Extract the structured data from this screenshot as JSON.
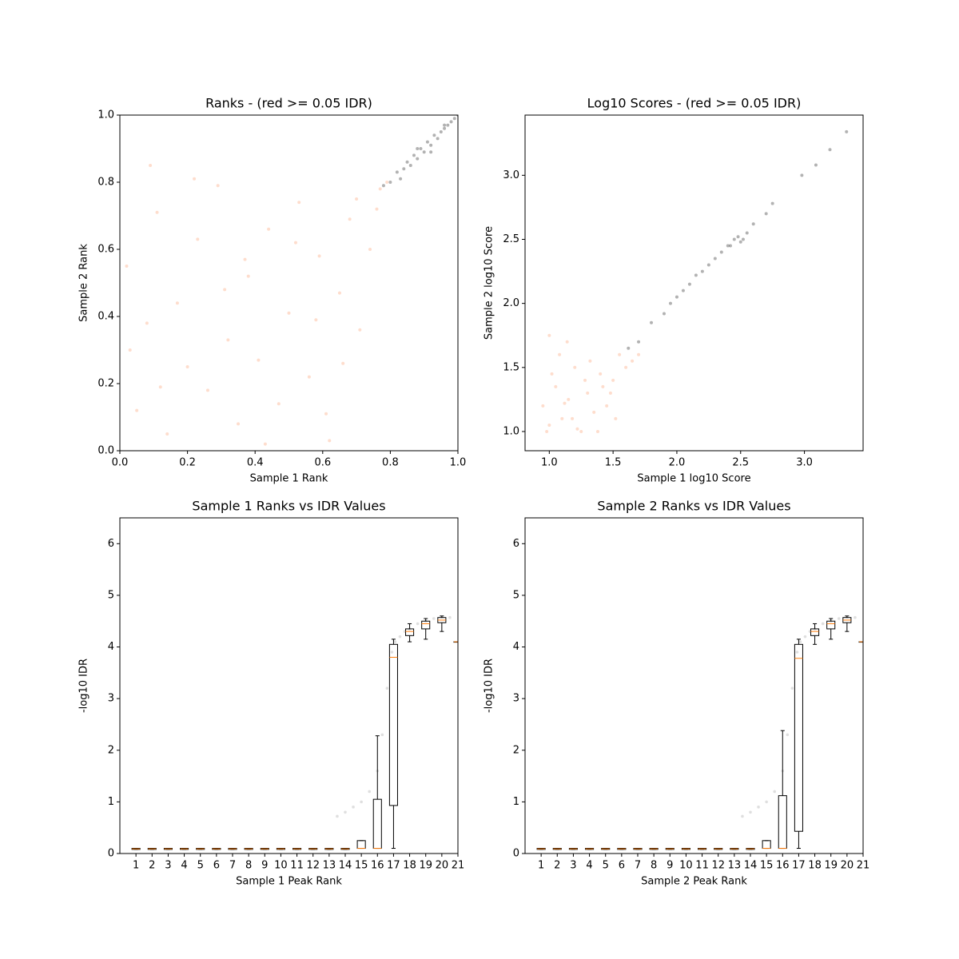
{
  "chart_data": [
    {
      "type": "scatter",
      "title": "Ranks - (red >= 0.05 IDR)",
      "x_label": "Sample 1 Rank",
      "y_label": "Sample 2 Rank",
      "xlim": [
        0,
        1
      ],
      "ylim": [
        0,
        1
      ],
      "xticks": [
        {
          "value": 0,
          "label": "0.0"
        },
        {
          "value": 0.2,
          "label": "0.2"
        },
        {
          "value": 0.4,
          "label": "0.4"
        },
        {
          "value": 0.6,
          "label": "0.6"
        },
        {
          "value": 0.8,
          "label": "0.8"
        },
        {
          "value": 1,
          "label": "1.0"
        }
      ],
      "yticks": [
        {
          "value": 0,
          "label": "0.0"
        },
        {
          "value": 0.2,
          "label": "0.2"
        },
        {
          "value": 0.4,
          "label": "0.4"
        },
        {
          "value": 0.6,
          "label": "0.6"
        },
        {
          "value": 0.8,
          "label": "0.8"
        },
        {
          "value": 1,
          "label": "1.0"
        }
      ],
      "series": [
        {
          "color": "#fc8d59",
          "x": [
            0.02,
            0.05,
            0.08,
            0.11,
            0.14,
            0.17,
            0.2,
            0.23,
            0.26,
            0.29,
            0.32,
            0.35,
            0.38,
            0.41,
            0.44,
            0.47,
            0.5,
            0.53,
            0.56,
            0.59,
            0.62,
            0.65,
            0.68,
            0.71,
            0.74,
            0.77,
            0.03,
            0.12,
            0.22,
            0.31,
            0.43,
            0.52,
            0.61,
            0.7,
            0.76,
            0.79,
            0.09,
            0.37,
            0.58,
            0.66
          ],
          "y": [
            0.55,
            0.12,
            0.38,
            0.71,
            0.05,
            0.44,
            0.25,
            0.63,
            0.18,
            0.79,
            0.33,
            0.08,
            0.52,
            0.27,
            0.66,
            0.14,
            0.41,
            0.74,
            0.22,
            0.58,
            0.03,
            0.47,
            0.69,
            0.36,
            0.6,
            0.78,
            0.3,
            0.19,
            0.81,
            0.48,
            0.02,
            0.62,
            0.11,
            0.75,
            0.72,
            0.8,
            0.85,
            0.57,
            0.39,
            0.26
          ]
        },
        {
          "color": "#000000",
          "x": [
            0.78,
            0.8,
            0.82,
            0.84,
            0.85,
            0.86,
            0.87,
            0.88,
            0.89,
            0.9,
            0.91,
            0.92,
            0.93,
            0.94,
            0.95,
            0.96,
            0.97,
            0.98,
            0.99,
            1.0,
            0.83,
            0.88,
            0.92,
            0.96
          ],
          "y": [
            0.79,
            0.8,
            0.83,
            0.84,
            0.86,
            0.85,
            0.88,
            0.87,
            0.9,
            0.89,
            0.92,
            0.91,
            0.94,
            0.93,
            0.95,
            0.96,
            0.97,
            0.98,
            0.99,
            1.0,
            0.81,
            0.9,
            0.89,
            0.97
          ]
        }
      ]
    },
    {
      "type": "scatter",
      "title": "Log10 Scores - (red >= 0.05 IDR)",
      "x_label": "Sample 1 log10 Score",
      "y_label": "Sample 2 log10 Score",
      "xlim": [
        0.81,
        3.46
      ],
      "ylim": [
        0.85,
        3.47
      ],
      "xticks": [
        {
          "value": 1,
          "label": "1.0"
        },
        1.5,
        {
          "value": 2,
          "label": "2.0"
        },
        2.5,
        {
          "value": 3,
          "label": "3.0"
        }
      ],
      "yticks": [
        {
          "value": 1,
          "label": "1.0"
        },
        1.5,
        {
          "value": 2,
          "label": "2.0"
        },
        2.5,
        {
          "value": 3,
          "label": "3.0"
        }
      ],
      "series": [
        {
          "color": "#fc8d59",
          "x": [
            0.95,
            1.0,
            1.05,
            1.1,
            1.15,
            1.2,
            1.25,
            1.3,
            1.35,
            1.4,
            1.45,
            1.5,
            1.55,
            1.6,
            0.98,
            1.08,
            1.18,
            1.28,
            1.38,
            1.48,
            1.02,
            1.12,
            1.22,
            1.32,
            1.42,
            1.52,
            1.65,
            1.7,
            1.0,
            1.14
          ],
          "y": [
            1.2,
            1.05,
            1.35,
            1.1,
            1.25,
            1.5,
            1.0,
            1.3,
            1.15,
            1.45,
            1.2,
            1.4,
            1.6,
            1.5,
            1.0,
            1.6,
            1.1,
            1.4,
            1.0,
            1.3,
            1.45,
            1.22,
            1.02,
            1.55,
            1.35,
            1.1,
            1.55,
            1.6,
            1.75,
            1.7
          ]
        },
        {
          "color": "#000000",
          "x": [
            1.62,
            1.7,
            1.8,
            1.9,
            1.95,
            2.0,
            2.05,
            2.1,
            2.15,
            2.2,
            2.25,
            2.3,
            2.35,
            2.4,
            2.45,
            2.5,
            2.55,
            2.6,
            2.7,
            2.75,
            2.98,
            3.09,
            3.2,
            3.33,
            2.42,
            2.48,
            2.52
          ],
          "y": [
            1.65,
            1.7,
            1.85,
            1.92,
            2.0,
            2.05,
            2.1,
            2.15,
            2.22,
            2.25,
            2.3,
            2.35,
            2.4,
            2.45,
            2.5,
            2.48,
            2.55,
            2.62,
            2.7,
            2.78,
            3.0,
            3.08,
            3.2,
            3.34,
            2.45,
            2.52,
            2.5
          ]
        }
      ]
    },
    {
      "type": "box",
      "title": "Sample 1 Ranks vs IDR Values",
      "x_label": "Sample 1 Peak Rank",
      "y_label": "-log10 IDR",
      "xlim": [
        0,
        21
      ],
      "ylim": [
        0,
        6.5
      ],
      "xticks": [
        1,
        2,
        3,
        4,
        5,
        6,
        7,
        8,
        9,
        10,
        11,
        12,
        13,
        14,
        15,
        16,
        17,
        18,
        19,
        20,
        21
      ],
      "yticks": [
        0,
        1,
        2,
        3,
        4,
        5,
        6
      ],
      "whisker_low": [
        0.08,
        0.08,
        0.08,
        0.08,
        0.08,
        0.08,
        0.08,
        0.08,
        0.08,
        0.08,
        0.08,
        0.08,
        0.08,
        0.08,
        0.1,
        0.1,
        0.1,
        4.1,
        4.15,
        4.3,
        4.1
      ],
      "q1": [
        0.08,
        0.08,
        0.08,
        0.08,
        0.08,
        0.08,
        0.08,
        0.08,
        0.08,
        0.08,
        0.08,
        0.08,
        0.08,
        0.08,
        0.1,
        0.1,
        0.93,
        4.22,
        4.35,
        4.47,
        4.1
      ],
      "median": [
        0.09,
        0.09,
        0.09,
        0.09,
        0.09,
        0.09,
        0.09,
        0.09,
        0.09,
        0.09,
        0.09,
        0.09,
        0.09,
        0.09,
        0.1,
        0.1,
        3.8,
        4.3,
        4.45,
        4.52,
        4.1
      ],
      "q3": [
        0.1,
        0.1,
        0.1,
        0.1,
        0.1,
        0.1,
        0.1,
        0.1,
        0.1,
        0.1,
        0.1,
        0.1,
        0.1,
        0.1,
        0.25,
        1.05,
        4.05,
        4.35,
        4.5,
        4.57,
        4.1
      ],
      "whisker_high": [
        0.1,
        0.1,
        0.1,
        0.1,
        0.1,
        0.1,
        0.1,
        0.1,
        0.1,
        0.1,
        0.1,
        0.1,
        0.1,
        0.1,
        0.25,
        2.28,
        4.15,
        4.45,
        4.55,
        4.6,
        4.1
      ],
      "points": {
        "color": "#808080",
        "x": [
          13.5,
          14,
          14.5,
          15,
          15.5,
          16,
          16.3,
          16.6,
          16.9,
          17.1,
          17.4,
          17.7,
          18,
          18.5,
          19,
          19.5,
          20,
          20.5
        ],
        "y": [
          0.72,
          0.8,
          0.9,
          1.0,
          1.2,
          1.6,
          2.3,
          3.2,
          3.9,
          4.1,
          4.2,
          4.3,
          4.35,
          4.45,
          4.5,
          4.55,
          4.58,
          4.57
        ]
      }
    },
    {
      "type": "box",
      "title": "Sample 2 Ranks vs IDR Values",
      "x_label": "Sample 2 Peak Rank",
      "y_label": "-log10 IDR",
      "xlim": [
        0,
        21
      ],
      "ylim": [
        0,
        6.5
      ],
      "xticks": [
        1,
        2,
        3,
        4,
        5,
        6,
        7,
        8,
        9,
        10,
        11,
        12,
        13,
        14,
        15,
        16,
        17,
        18,
        19,
        20,
        21
      ],
      "yticks": [
        0,
        1,
        2,
        3,
        4,
        5,
        6
      ],
      "whisker_low": [
        0.08,
        0.08,
        0.08,
        0.08,
        0.08,
        0.08,
        0.08,
        0.08,
        0.08,
        0.08,
        0.08,
        0.08,
        0.08,
        0.08,
        0.1,
        0.1,
        0.1,
        4.05,
        4.15,
        4.3,
        4.1
      ],
      "q1": [
        0.08,
        0.08,
        0.08,
        0.08,
        0.08,
        0.08,
        0.08,
        0.08,
        0.08,
        0.08,
        0.08,
        0.08,
        0.08,
        0.08,
        0.1,
        0.1,
        0.43,
        4.22,
        4.35,
        4.47,
        4.1
      ],
      "median": [
        0.09,
        0.09,
        0.09,
        0.09,
        0.09,
        0.09,
        0.09,
        0.09,
        0.09,
        0.09,
        0.09,
        0.09,
        0.09,
        0.09,
        0.1,
        0.1,
        3.78,
        4.3,
        4.45,
        4.52,
        4.1
      ],
      "q3": [
        0.1,
        0.1,
        0.1,
        0.1,
        0.1,
        0.1,
        0.1,
        0.1,
        0.1,
        0.1,
        0.1,
        0.1,
        0.1,
        0.1,
        0.25,
        1.12,
        4.05,
        4.35,
        4.5,
        4.57,
        4.1
      ],
      "whisker_high": [
        0.1,
        0.1,
        0.1,
        0.1,
        0.1,
        0.1,
        0.1,
        0.1,
        0.1,
        0.1,
        0.1,
        0.1,
        0.1,
        0.1,
        0.25,
        2.38,
        4.15,
        4.45,
        4.55,
        4.6,
        4.1
      ],
      "points": {
        "color": "#808080",
        "x": [
          13.5,
          14,
          14.5,
          15,
          15.5,
          16,
          16.3,
          16.6,
          16.9,
          17.1,
          17.4,
          17.7,
          18,
          18.5,
          19,
          19.5,
          20,
          20.5
        ],
        "y": [
          0.72,
          0.8,
          0.9,
          1.0,
          1.2,
          1.6,
          2.3,
          3.2,
          3.9,
          4.1,
          4.2,
          4.3,
          4.35,
          4.45,
          4.5,
          4.55,
          4.58,
          4.57
        ]
      }
    }
  ]
}
